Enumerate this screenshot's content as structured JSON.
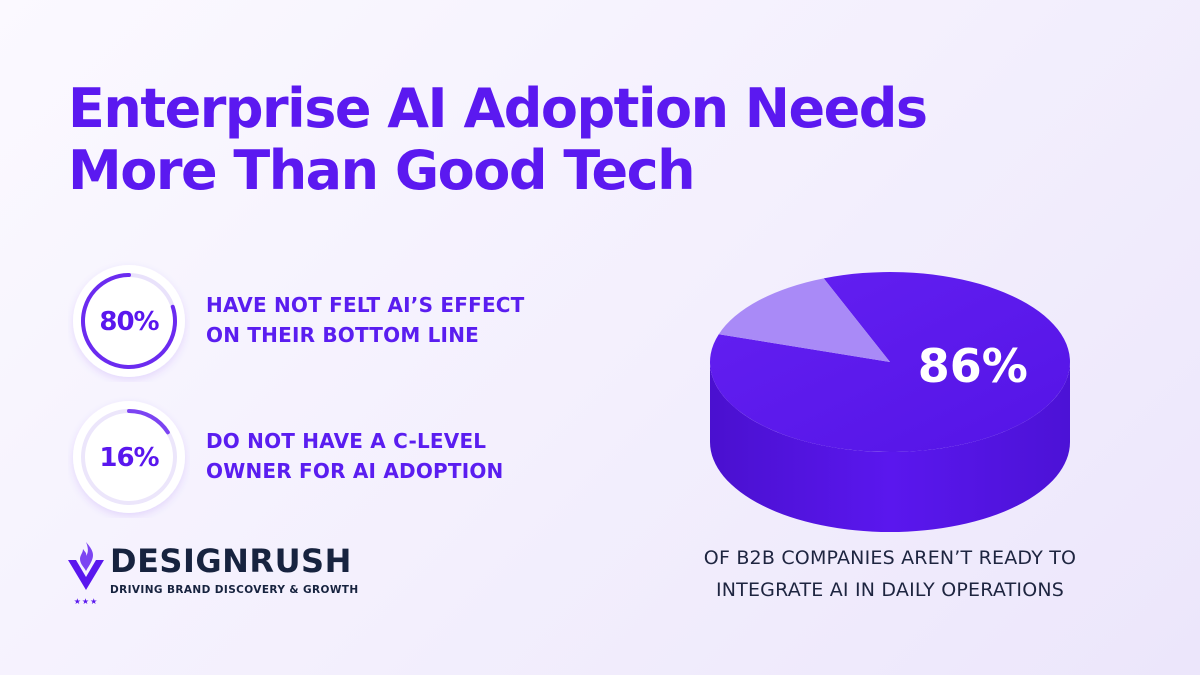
{
  "title": {
    "line1": "Enterprise AI Adoption Needs",
    "line2": "More Than Good Tech"
  },
  "stats": [
    {
      "value": "80%",
      "percent": 80,
      "line1": "HAVE NOT FELT AI’S EFFECT",
      "line2": "ON THEIR BOTTOM LINE"
    },
    {
      "value": "16%",
      "percent": 16,
      "line1": "DO NOT HAVE A C-LEVEL",
      "line2": "OWNER FOR AI ADOPTION"
    }
  ],
  "chart_data": {
    "type": "pie",
    "slices": [
      {
        "value": 86,
        "label": "86%",
        "color": "#5a17ee"
      },
      {
        "value": 14,
        "label": "",
        "color": "#a98af7"
      }
    ],
    "caption_line1": "OF B2B COMPANIES AREN’T READY TO",
    "caption_line2": "INTEGRATE AI IN DAILY OPERATIONS"
  },
  "brand": {
    "name": "DESIGNRUSH",
    "tagline": "DRIVING BRAND DISCOVERY & GROWTH",
    "stars": "★★★"
  },
  "colors": {
    "accent": "#5a17ee",
    "accent_light": "#a98af7",
    "text_dark": "#1e2540"
  }
}
